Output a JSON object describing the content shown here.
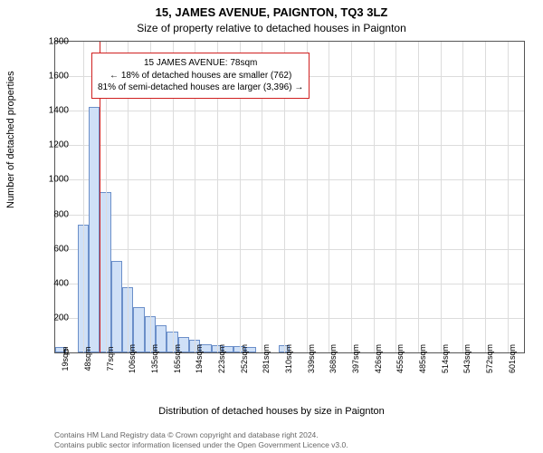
{
  "chart": {
    "type": "histogram",
    "title": "15, JAMES AVENUE, PAIGNTON, TQ3 3LZ",
    "subtitle": "Size of property relative to detached houses in Paignton",
    "ylabel": "Number of detached properties",
    "xlabel": "Distribution of detached houses by size in Paignton",
    "background_color": "#ffffff",
    "grid_color": "#dcdcdc",
    "axis_color": "#555555",
    "bar_fill": "#cfe0f7",
    "bar_border": "#6b8fc9",
    "ref_line_color": "#d02020",
    "title_fontsize": 13,
    "subtitle_fontsize": 12,
    "label_fontsize": 11,
    "tick_fontsize": 10,
    "xtick_fontsize": 9,
    "ylim": [
      0,
      1800
    ],
    "ytick_step": 200,
    "yticks": [
      0,
      200,
      400,
      600,
      800,
      1000,
      1200,
      1400,
      1600,
      1800
    ],
    "xticks": [
      "19sqm",
      "48sqm",
      "77sqm",
      "106sqm",
      "135sqm",
      "165sqm",
      "194sqm",
      "223sqm",
      "252sqm",
      "281sqm",
      "310sqm",
      "339sqm",
      "368sqm",
      "397sqm",
      "426sqm",
      "455sqm",
      "485sqm",
      "514sqm",
      "543sqm",
      "572sqm",
      "601sqm"
    ],
    "bar_values": [
      30,
      0,
      740,
      1420,
      930,
      530,
      380,
      260,
      210,
      155,
      120,
      88,
      75,
      45,
      40,
      35,
      35,
      30,
      0,
      0,
      40,
      0,
      0,
      0,
      0,
      0,
      0,
      0,
      0,
      0,
      0,
      0,
      0,
      0,
      0,
      0,
      0,
      0,
      0,
      0,
      0,
      0
    ],
    "bar_count": 42,
    "ref_line_bar_index": 3.5,
    "annotation": {
      "line1": "15 JAMES AVENUE: 78sqm",
      "line2": "← 18% of detached houses are smaller (762)",
      "line3": "81% of semi-detached houses are larger (3,396) →",
      "border_color": "#d02020",
      "bg_color": "#ffffff",
      "font_size": 10
    },
    "attribution": {
      "line1": "Contains HM Land Registry data © Crown copyright and database right 2024.",
      "line2": "Contains public sector information licensed under the Open Government Licence v3.0."
    }
  }
}
